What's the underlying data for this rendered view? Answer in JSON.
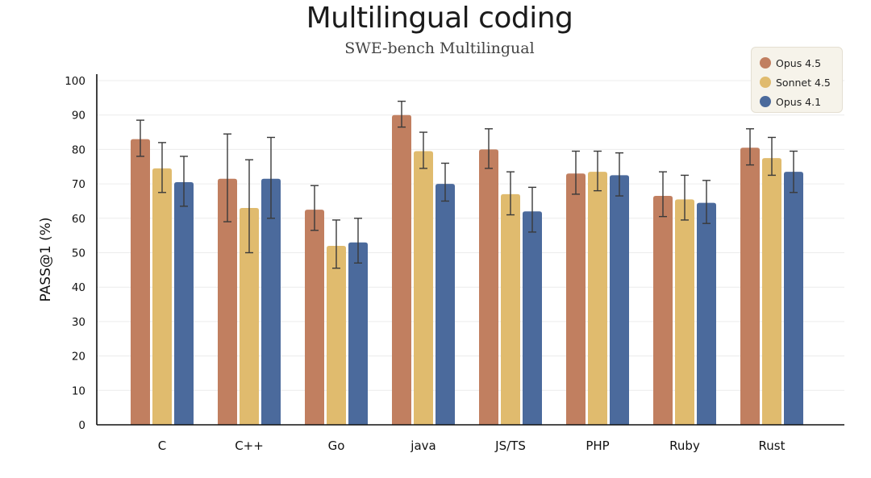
{
  "chart_data": {
    "type": "bar",
    "title": "Multilingual coding",
    "subtitle": "SWE-bench Multilingual",
    "xlabel": "",
    "ylabel": "PASS@1 (%)",
    "ylim": [
      0,
      100
    ],
    "yticks": [
      0,
      10,
      20,
      30,
      40,
      50,
      60,
      70,
      80,
      90,
      100
    ],
    "grid": true,
    "legend_position": "top-right",
    "error_bars": true,
    "categories": [
      "C",
      "C++",
      "Go",
      "java",
      "JS/TS",
      "PHP",
      "Ruby",
      "Rust"
    ],
    "series": [
      {
        "name": "Opus 4.5",
        "color": "#c17f60",
        "values": [
          83,
          71.5,
          62.5,
          90,
          80,
          73,
          66.5,
          80.5
        ],
        "error_low": [
          78,
          59,
          56.5,
          86.5,
          74.5,
          67,
          60.5,
          75.5
        ],
        "error_high": [
          88.5,
          84.5,
          69.5,
          94,
          86,
          79.5,
          73.5,
          86
        ]
      },
      {
        "name": "Sonnet 4.5",
        "color": "#e0bb6e",
        "values": [
          74.5,
          63,
          52,
          79.5,
          67,
          73.5,
          65.5,
          77.5
        ],
        "error_low": [
          67.5,
          50,
          45.5,
          74.5,
          61,
          68,
          59.5,
          72.5
        ],
        "error_high": [
          82,
          77,
          59.5,
          85,
          73.5,
          79.5,
          72.5,
          83.5
        ]
      },
      {
        "name": "Opus 4.1",
        "color": "#4b6a9c",
        "values": [
          70.5,
          71.5,
          53,
          70,
          62,
          72.5,
          64.5,
          73.5
        ],
        "error_low": [
          63.5,
          60,
          47,
          65,
          56,
          66.5,
          58.5,
          67.5
        ],
        "error_high": [
          78,
          83.5,
          60,
          76,
          69,
          79,
          71,
          79.5
        ]
      }
    ]
  }
}
